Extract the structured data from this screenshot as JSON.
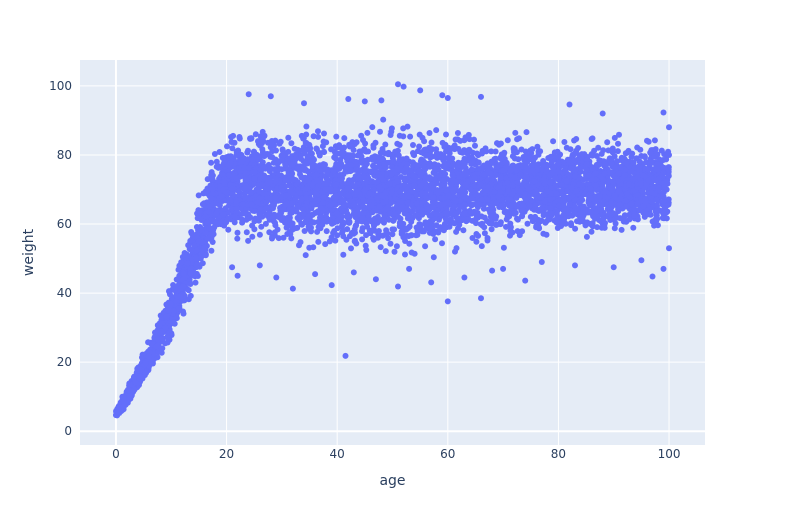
{
  "chart_data": {
    "type": "scatter",
    "title": "",
    "xlabel": "age",
    "ylabel": "weight",
    "xlim": [
      -6.5,
      106.5
    ],
    "ylim": [
      -4,
      107.5
    ],
    "xticks": [
      0,
      20,
      40,
      60,
      80,
      100
    ],
    "yticks": [
      0,
      20,
      40,
      60,
      80,
      100
    ],
    "grid": true,
    "legend": "none",
    "colors": {
      "marker": "#636efa",
      "plot_background": "#e5ecf6",
      "grid": "#ffffff",
      "text": "#2a3f5f"
    },
    "series": [
      {
        "marker": "circle",
        "description_of_shape": "dense cloud",
        "bands": [
          {
            "x": 0,
            "y_min": 3.5,
            "y_max": 6.5
          },
          {
            "x": 2,
            "y_min": 7,
            "y_max": 13
          },
          {
            "x": 4,
            "y_min": 11,
            "y_max": 20
          },
          {
            "x": 6,
            "y_min": 15,
            "y_max": 27
          },
          {
            "x": 8,
            "y_min": 20,
            "y_max": 35
          },
          {
            "x": 10,
            "y_min": 25,
            "y_max": 44
          },
          {
            "x": 12,
            "y_min": 31,
            "y_max": 54
          },
          {
            "x": 14,
            "y_min": 37,
            "y_max": 64
          },
          {
            "x": 16,
            "y_min": 44,
            "y_max": 74
          },
          {
            "x": 18,
            "y_min": 50,
            "y_max": 84
          },
          {
            "x": 20,
            "y_min": 52,
            "y_max": 90
          },
          {
            "x": 30,
            "y_min": 50,
            "y_max": 91
          },
          {
            "x": 40,
            "y_min": 49,
            "y_max": 91
          },
          {
            "x": 50,
            "y_min": 48,
            "y_max": 91
          },
          {
            "x": 60,
            "y_min": 49,
            "y_max": 91
          },
          {
            "x": 70,
            "y_min": 52,
            "y_max": 89
          },
          {
            "x": 80,
            "y_min": 54,
            "y_max": 88
          },
          {
            "x": 90,
            "y_min": 54,
            "y_max": 88
          },
          {
            "x": 100,
            "y_min": 55,
            "y_max": 87
          }
        ],
        "points": [
          [
            51,
            100.5
          ],
          [
            52,
            99.8
          ],
          [
            55,
            98.7
          ],
          [
            24,
            97.6
          ],
          [
            66,
            96.8
          ],
          [
            28,
            97.0
          ],
          [
            59,
            97.3
          ],
          [
            42,
            96.2
          ],
          [
            48,
            95.8
          ],
          [
            82,
            94.6
          ],
          [
            99,
            92.3
          ],
          [
            60,
            96.5
          ],
          [
            45,
            95.5
          ],
          [
            34,
            95.0
          ],
          [
            88,
            92.0
          ],
          [
            41.5,
            21.8
          ],
          [
            60,
            37.6
          ],
          [
            66,
            38.5
          ],
          [
            32,
            41.3
          ],
          [
            39,
            42.3
          ],
          [
            51,
            41.9
          ],
          [
            57,
            43.1
          ],
          [
            74,
            43.6
          ],
          [
            97,
            44.8
          ],
          [
            99,
            47.0
          ],
          [
            22,
            45.0
          ],
          [
            21,
            47.5
          ],
          [
            26,
            48.0
          ],
          [
            29,
            44.5
          ],
          [
            36,
            45.5
          ],
          [
            43,
            46.0
          ],
          [
            47,
            44.0
          ],
          [
            53,
            47.0
          ],
          [
            63,
            44.5
          ],
          [
            68,
            46.5
          ],
          [
            70,
            47.0
          ],
          [
            77,
            49.0
          ],
          [
            83,
            48.0
          ],
          [
            90,
            47.5
          ],
          [
            95,
            49.5
          ],
          [
            100,
            53.0
          ],
          [
            100,
            80.0
          ],
          [
            100,
            88.0
          ]
        ]
      }
    ]
  }
}
